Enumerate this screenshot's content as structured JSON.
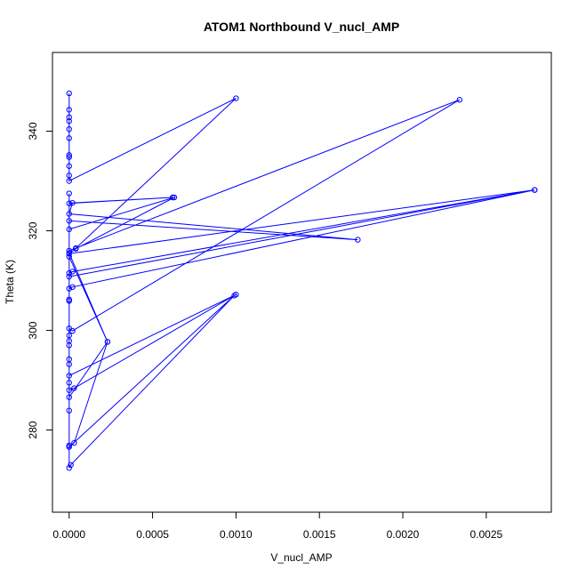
{
  "chart_data": {
    "type": "line",
    "title": "ATOM1 Northbound V_nucl_AMP",
    "xlabel": "V_nucl_AMP",
    "ylabel": "Theta (K)",
    "xlim": [
      -0.0001,
      0.00289
    ],
    "ylim": [
      263.5,
      355.8
    ],
    "x_ticks": [
      0.0,
      0.0005,
      0.001,
      0.0015,
      0.002,
      0.0025
    ],
    "x_tick_labels": [
      "0.0000",
      "0.0005",
      "0.0010",
      "0.0015",
      "0.0020",
      "0.0025"
    ],
    "y_ticks": [
      280,
      300,
      320,
      340
    ],
    "y_tick_labels": [
      "280",
      "300",
      "320",
      "340"
    ],
    "grid": false,
    "legend": "none",
    "color": "#0000ff",
    "series": [
      {
        "points": [
          [
            0.0,
            347.6
          ],
          [
            0.0,
            344.3
          ],
          [
            0.0,
            342.8
          ],
          [
            0.0,
            342.0
          ],
          [
            0.0,
            340.4
          ],
          [
            0.0,
            338.6
          ],
          [
            0.0,
            335.2
          ],
          [
            0.0,
            334.8
          ],
          [
            0.0,
            333.0
          ],
          [
            0.0,
            331.1
          ],
          [
            0.0,
            330.0
          ],
          [
            0.001,
            346.6
          ],
          [
            4e-05,
            316.5
          ],
          [
            0.0,
            316.0
          ],
          [
            0.00234,
            346.3
          ],
          [
            2e-05,
            299.9
          ],
          [
            0.0,
            300.4
          ],
          [
            0.0,
            327.5
          ],
          [
            0.0,
            325.5
          ],
          [
            0.00062,
            326.7
          ],
          [
            2e-05,
            325.6
          ],
          [
            0.0,
            323.4
          ],
          [
            0.00173,
            318.2
          ],
          [
            0.0,
            322.0
          ],
          [
            0.0,
            320.3
          ],
          [
            0.00063,
            326.7
          ],
          [
            4e-05,
            316.4
          ],
          [
            0.0,
            315.4
          ],
          [
            0.00279,
            328.2
          ],
          [
            2e-05,
            311.8
          ],
          [
            0.0,
            311.5
          ],
          [
            0.0,
            310.8
          ],
          [
            0.00279,
            328.2
          ],
          [
            2e-05,
            308.7
          ],
          [
            0.0,
            308.4
          ],
          [
            0.0,
            306.2
          ],
          [
            0.0,
            299.0
          ],
          [
            0.0,
            297.9
          ],
          [
            0.0,
            297.0
          ],
          [
            0.0,
            294.2
          ],
          [
            0.0,
            293.2
          ],
          [
            0.0,
            290.9
          ],
          [
            0.001,
            307.2
          ],
          [
            3e-05,
            288.4
          ],
          [
            0.0,
            288.0
          ],
          [
            0.0,
            286.6
          ],
          [
            0.00023,
            297.7
          ],
          [
            3e-05,
            277.4
          ],
          [
            0.0,
            276.6
          ],
          [
            0.00099,
            307.0
          ],
          [
            1e-05,
            273.0
          ],
          [
            0.0,
            272.4
          ],
          [
            0.0,
            283.9
          ],
          [
            0.0,
            305.9
          ],
          [
            0.0,
            314.8
          ],
          [
            0.00023,
            297.7
          ],
          [
            0.0,
            315.5
          ],
          [
            0.0,
            289.5
          ],
          [
            0.0,
            276.9
          ]
        ]
      }
    ]
  }
}
